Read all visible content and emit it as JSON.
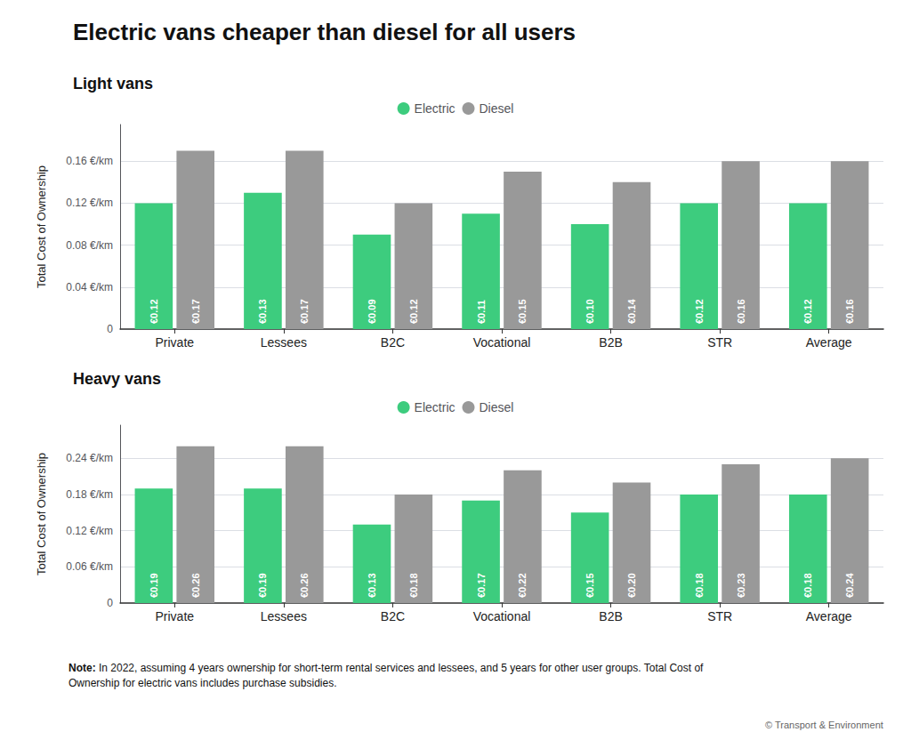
{
  "chart_data": [
    {
      "type": "bar",
      "title": "Electric vans cheaper than diesel for all users",
      "subtitle": "Light vans",
      "ylabel": "Total Cost of Ownership",
      "categories": [
        "Private",
        "Lessees",
        "B2C",
        "Vocational",
        "B2B",
        "STR",
        "Average"
      ],
      "series": [
        {
          "name": "Electric",
          "color": "#3dcc7e",
          "values": [
            0.12,
            0.13,
            0.09,
            0.11,
            0.1,
            0.12,
            0.12
          ],
          "value_labels": [
            "€0.12",
            "€0.13",
            "€0.09",
            "€0.11",
            "€0.10",
            "€0.12",
            "€0.12"
          ]
        },
        {
          "name": "Diesel",
          "color": "#999999",
          "values": [
            0.17,
            0.17,
            0.12,
            0.15,
            0.14,
            0.16,
            0.16
          ],
          "value_labels": [
            "€0.17",
            "€0.17",
            "€0.12",
            "€0.15",
            "€0.14",
            "€0.16",
            "€0.16"
          ]
        }
      ],
      "ylim": [
        0,
        0.195
      ],
      "yticks": [
        0,
        {
          "value": 0.04,
          "label": "0.04 €/km"
        },
        {
          "value": 0.08,
          "label": "0.08 €/km"
        },
        {
          "value": 0.12,
          "label": "0.12 €/km"
        },
        {
          "value": 0.16,
          "label": "0.16 €/km"
        }
      ],
      "grid": true,
      "legend": "top",
      "data_labels": true
    },
    {
      "type": "bar",
      "subtitle": "Heavy vans",
      "ylabel": "Total Cost of Ownership",
      "categories": [
        "Private",
        "Lessees",
        "B2C",
        "Vocational",
        "B2B",
        "STR",
        "Average"
      ],
      "series": [
        {
          "name": "Electric",
          "color": "#3dcc7e",
          "values": [
            0.19,
            0.19,
            0.13,
            0.17,
            0.15,
            0.18,
            0.18
          ],
          "value_labels": [
            "€0.19",
            "€0.19",
            "€0.13",
            "€0.17",
            "€0.15",
            "€0.18",
            "€0.18"
          ]
        },
        {
          "name": "Diesel",
          "color": "#999999",
          "values": [
            0.26,
            0.26,
            0.18,
            0.22,
            0.2,
            0.23,
            0.24
          ],
          "value_labels": [
            "€0.26",
            "€0.26",
            "€0.18",
            "€0.22",
            "€0.20",
            "€0.23",
            "€0.24"
          ]
        }
      ],
      "ylim": [
        0,
        0.295
      ],
      "yticks": [
        0,
        {
          "value": 0.06,
          "label": "0.06 €/km"
        },
        {
          "value": 0.12,
          "label": "0.12 €/km"
        },
        {
          "value": 0.18,
          "label": "0.18 €/km"
        },
        {
          "value": 0.24,
          "label": "0.24 €/km"
        }
      ],
      "grid": true,
      "legend": "top",
      "data_labels": true,
      "annotations": [
        "Note:",
        " In 2022, assuming 4 years ownership for short-term rental services and lessees, and 5 years for other user groups. Total Cost of\nOwnership for electric vans includes purchase subsidies.",
        "© Transport & Environment"
      ]
    }
  ]
}
